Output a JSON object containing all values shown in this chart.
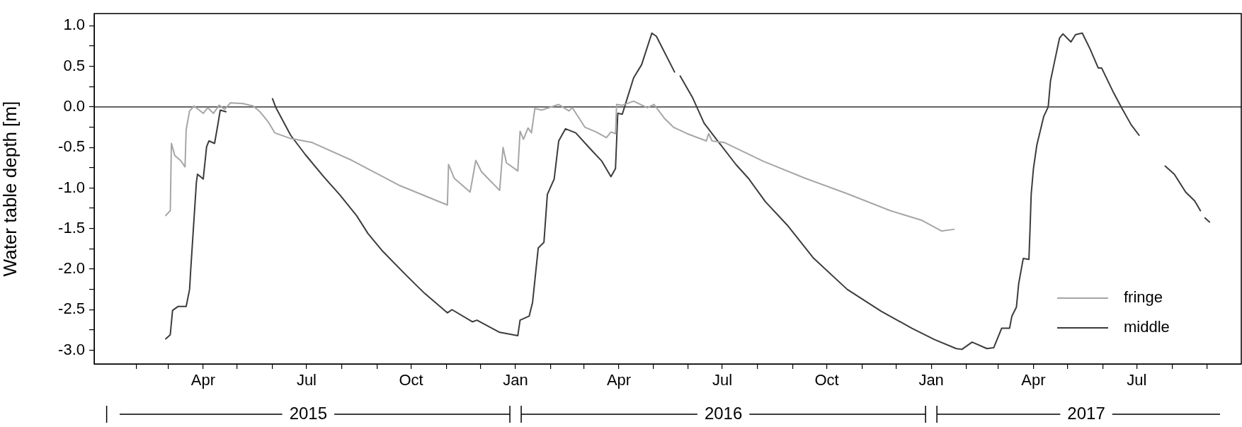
{
  "chart_data": {
    "type": "line",
    "ylabel": "Water table depth [m]",
    "xlim": [
      "2014-12-26",
      "2017-10-01"
    ],
    "ylim": [
      -3.17,
      1.15
    ],
    "xticks": [
      {
        "value": "2015-02",
        "label": null
      },
      {
        "value": "2015-03",
        "label": null
      },
      {
        "value": "2015-04",
        "label": "Apr"
      },
      {
        "value": "2015-05",
        "label": null
      },
      {
        "value": "2015-06",
        "label": null
      },
      {
        "value": "2015-07",
        "label": "Jul"
      },
      {
        "value": "2015-08",
        "label": null
      },
      {
        "value": "2015-09",
        "label": null
      },
      {
        "value": "2015-10",
        "label": "Oct"
      },
      {
        "value": "2015-11",
        "label": null
      },
      {
        "value": "2015-12",
        "label": null
      },
      {
        "value": "2016-01",
        "label": "Jan"
      },
      {
        "value": "2016-02",
        "label": null
      },
      {
        "value": "2016-03",
        "label": null
      },
      {
        "value": "2016-04",
        "label": "Apr"
      },
      {
        "value": "2016-05",
        "label": null
      },
      {
        "value": "2016-06",
        "label": null
      },
      {
        "value": "2016-07",
        "label": "Jul"
      },
      {
        "value": "2016-08",
        "label": null
      },
      {
        "value": "2016-09",
        "label": null
      },
      {
        "value": "2016-10",
        "label": "Oct"
      },
      {
        "value": "2016-11",
        "label": null
      },
      {
        "value": "2016-12",
        "label": null
      },
      {
        "value": "2017-01",
        "label": "Jan"
      },
      {
        "value": "2017-02",
        "label": null
      },
      {
        "value": "2017-03",
        "label": null
      },
      {
        "value": "2017-04",
        "label": "Apr"
      },
      {
        "value": "2017-05",
        "label": null
      },
      {
        "value": "2017-06",
        "label": null
      },
      {
        "value": "2017-07",
        "label": "Jul"
      },
      {
        "value": "2017-08",
        "label": null
      },
      {
        "value": "2017-09",
        "label": null
      }
    ],
    "yticks": [
      {
        "value": -3,
        "label": "-3.0"
      },
      {
        "value": -2.75,
        "label": null
      },
      {
        "value": -2.5,
        "label": "-2.5"
      },
      {
        "value": -2.25,
        "label": null
      },
      {
        "value": -2,
        "label": "-2.0"
      },
      {
        "value": -1.75,
        "label": null
      },
      {
        "value": -1.5,
        "label": "-1.5"
      },
      {
        "value": -1.25,
        "label": null
      },
      {
        "value": -1,
        "label": "-1.0"
      },
      {
        "value": -0.75,
        "label": null
      },
      {
        "value": -0.5,
        "label": "-0.5"
      },
      {
        "value": -0.25,
        "label": null
      },
      {
        "value": 0,
        "label": "0.0"
      },
      {
        "value": 0.25,
        "label": null
      },
      {
        "value": 0.5,
        "label": "0.5"
      },
      {
        "value": 0.75,
        "label": null
      },
      {
        "value": 1,
        "label": "1.0"
      }
    ],
    "grid": false,
    "legend": "bottom right",
    "line_style": "solid",
    "marker": "none",
    "ref_lines": [
      {
        "axis": "y",
        "value": 0,
        "color": "#333333"
      }
    ],
    "annotations": [
      "2015",
      "2016",
      "2017"
    ],
    "series": [
      {
        "name": "fringe",
        "color": "#a6a6a6",
        "x": [
          "2015-02-27",
          "2015-03-03",
          "2015-03-04",
          "2015-03-07",
          "2015-03-12",
          "2015-03-16",
          "2015-03-17",
          "2015-03-20",
          "2015-03-24",
          "2015-04-01",
          "2015-04-05",
          "2015-04-10",
          "2015-04-15",
          "2015-04-20",
          "2015-04-25",
          "2015-05-06",
          "2015-05-15",
          "2015-05-21",
          "2015-05-28",
          "2015-06-03",
          "2015-06-17",
          "2015-07-06",
          "2015-08-10",
          "2015-09-21",
          "2015-11-02",
          "2015-11-03",
          "2015-11-08",
          "2015-11-22",
          "2015-11-27",
          "2015-12-02",
          "2015-12-18",
          "2015-12-21",
          "2015-12-24",
          "2016-01-03",
          "2016-01-05",
          "2016-01-08",
          "2016-01-12",
          "2016-01-15",
          "2016-01-18",
          "2016-01-24",
          "2016-02-08",
          "2016-02-17",
          "2016-02-20",
          "2016-03-02",
          "2016-03-12",
          "2016-03-21",
          "2016-03-25",
          "2016-03-29",
          "2016-03-30",
          "2016-04-04",
          "2016-04-14",
          "2016-04-26",
          "2016-05-02",
          "2016-05-11",
          "2016-05-19",
          "2016-05-31",
          "2016-06-17",
          "2016-06-19",
          "2016-06-22",
          "2016-07-03",
          "2016-08-06",
          "2016-09-12",
          "2016-10-19",
          "2016-11-26",
          "2016-12-24",
          "2017-01-10",
          "2017-01-21"
        ],
        "values": [
          -1.34,
          -1.28,
          -0.45,
          -0.6,
          -0.66,
          -0.74,
          -0.28,
          -0.05,
          0.01,
          -0.08,
          -0.01,
          -0.08,
          0.02,
          -0.03,
          0.05,
          0.04,
          0.01,
          -0.06,
          -0.18,
          -0.32,
          -0.39,
          -0.44,
          -0.66,
          -0.97,
          -1.21,
          -0.71,
          -0.88,
          -1.05,
          -0.66,
          -0.8,
          -1.03,
          -0.5,
          -0.69,
          -0.79,
          -0.3,
          -0.4,
          -0.26,
          -0.32,
          -0.02,
          -0.04,
          0.03,
          -0.05,
          -0.01,
          -0.25,
          -0.31,
          -0.38,
          -0.31,
          -0.33,
          0.03,
          0.02,
          0.07,
          -0.01,
          0.03,
          -0.14,
          -0.25,
          -0.33,
          -0.42,
          -0.33,
          -0.42,
          -0.44,
          -0.67,
          -0.88,
          -1.07,
          -1.28,
          -1.4,
          -1.53,
          -1.51
        ]
      },
      {
        "name": "middle",
        "color": "#3c3c3c",
        "x": [
          "2015-02-27",
          "2015-03-03",
          "2015-03-05",
          "2015-03-10",
          "2015-03-17",
          "2015-03-20",
          "2015-03-21",
          "2015-03-26",
          "2015-03-27",
          "2015-04-01",
          "2015-04-04",
          "2015-04-06",
          "2015-04-11",
          "2015-04-14",
          "2015-04-16",
          "2015-04-21",
          "2015-05-10",
          "2015-06-01",
          "2015-06-04",
          "2015-06-17",
          "2015-06-30",
          "2015-07-16",
          "2015-07-30",
          "2015-08-14",
          "2015-08-24",
          "2015-09-06",
          "2015-09-27",
          "2015-10-13",
          "2015-11-02",
          "2015-11-06",
          "2015-11-24",
          "2015-11-28",
          "2015-12-18",
          "2016-01-03",
          "2016-01-05",
          "2016-01-13",
          "2016-01-16",
          "2016-01-21",
          "2016-01-26",
          "2016-01-29",
          "2016-02-04",
          "2016-02-08",
          "2016-02-14",
          "2016-02-23",
          "2016-03-07",
          "2016-03-17",
          "2016-03-25",
          "2016-03-29",
          "2016-03-31",
          "2016-04-04",
          "2016-04-08",
          "2016-04-14",
          "2016-04-21",
          "2016-04-30",
          "2016-05-04",
          "2016-05-20",
          "2016-05-22",
          "2016-05-25",
          "2016-06-05",
          "2016-06-15",
          "2016-06-27",
          "2016-07-13",
          "2016-07-24",
          "2016-08-08",
          "2016-08-28",
          "2016-09-19",
          "2016-10-19",
          "2016-11-18",
          "2016-12-15",
          "2017-01-04",
          "2017-01-23",
          "2017-01-28",
          "2017-02-06",
          "2017-02-19",
          "2017-02-25",
          "2017-03-04",
          "2017-03-11",
          "2017-03-13",
          "2017-03-17",
          "2017-03-19",
          "2017-03-23",
          "2017-03-28",
          "2017-03-29",
          "2017-03-30",
          "2017-04-01",
          "2017-04-04",
          "2017-04-10",
          "2017-04-14",
          "2017-04-16",
          "2017-04-19",
          "2017-04-24",
          "2017-04-27",
          "2017-05-04",
          "2017-05-08",
          "2017-05-14",
          "2017-05-21",
          "2017-05-28",
          "2017-05-31",
          "2017-06-10",
          "2017-06-18",
          "2017-06-26",
          "2017-07-03",
          "2017-07-15",
          "2017-07-26",
          "2017-08-03",
          "2017-08-13",
          "2017-08-21",
          "2017-08-26",
          "2017-08-28",
          "2017-08-30",
          "2017-09-03"
        ],
        "values": [
          -2.86,
          -2.81,
          -2.51,
          -2.46,
          -2.46,
          -2.25,
          -2.01,
          -0.93,
          -0.83,
          -0.89,
          -0.49,
          -0.42,
          -0.45,
          -0.21,
          -0.04,
          -0.06,
          null,
          0.1,
          -0.01,
          -0.35,
          -0.59,
          -0.86,
          -1.08,
          -1.34,
          -1.56,
          -1.78,
          -2.08,
          -2.3,
          -2.54,
          -2.5,
          -2.65,
          -2.63,
          -2.78,
          -2.82,
          -2.63,
          -2.58,
          -2.41,
          -1.74,
          -1.67,
          -1.08,
          -0.89,
          -0.42,
          -0.27,
          -0.32,
          -0.52,
          -0.67,
          -0.86,
          -0.76,
          -0.08,
          -0.09,
          0.09,
          0.36,
          0.52,
          0.91,
          0.87,
          0.43,
          null,
          0.38,
          0.11,
          -0.2,
          -0.42,
          -0.71,
          -0.88,
          -1.17,
          -1.47,
          -1.86,
          -2.25,
          -2.52,
          -2.73,
          -2.87,
          -2.98,
          -2.99,
          -2.9,
          -2.98,
          -2.97,
          -2.73,
          -2.73,
          -2.58,
          -2.47,
          -2.18,
          -1.87,
          -1.88,
          -1.51,
          -1.08,
          -0.76,
          -0.47,
          -0.12,
          0.0,
          0.32,
          0.52,
          0.85,
          0.9,
          0.8,
          0.89,
          0.91,
          0.71,
          0.48,
          0.48,
          0.19,
          -0.02,
          -0.22,
          -0.35,
          null,
          -0.73,
          -0.83,
          -1.05,
          -1.16,
          -1.28,
          null,
          -1.37,
          -1.42
        ]
      }
    ]
  }
}
